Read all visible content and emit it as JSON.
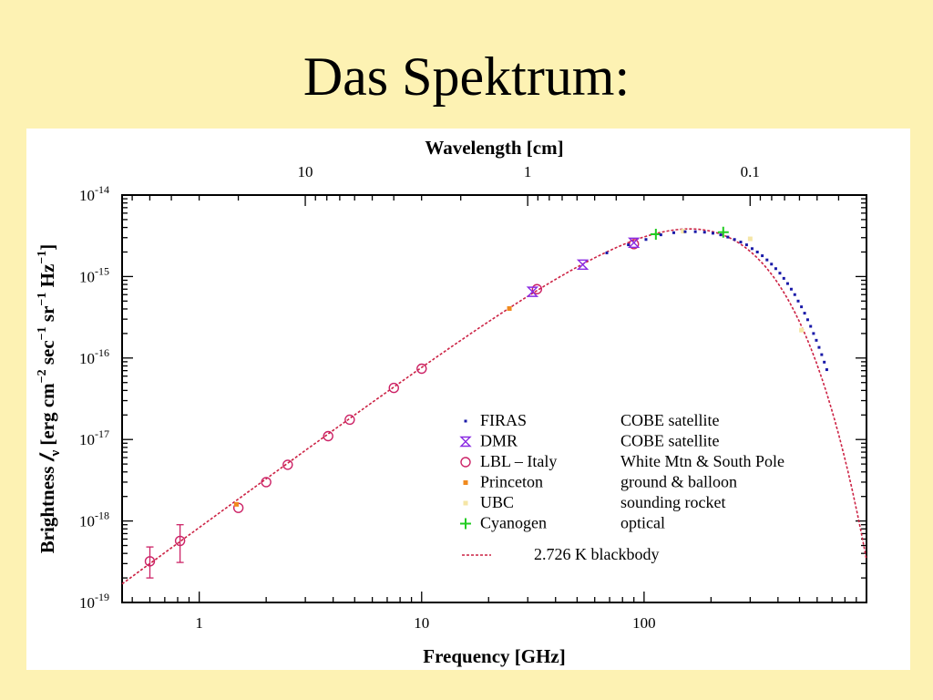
{
  "slide": {
    "title": "Das Spektrum:"
  },
  "colors": {
    "background": "#fdf2b3",
    "firas": "#1a1aa8",
    "dmr": "#8a2be2",
    "lbl": "#cc2266",
    "princeton": "#f08a1e",
    "ubc": "#f5e6a6",
    "cyanogen": "#22cc22",
    "blackbody": "#cc2244"
  },
  "chart_data": {
    "type": "scatter",
    "xscale": "log",
    "yscale": "log",
    "xlabel": "Frequency [GHz]",
    "ylabel_parts": [
      "Brightness ",
      "𝐼",
      "ν",
      " [erg cm",
      "−2",
      " sec",
      "−1",
      " sr",
      "−1",
      " Hz",
      "−1",
      "]"
    ],
    "top_axis_label": "Wavelength [cm]",
    "xlim": [
      0.45,
      1000
    ],
    "ylim": [
      1e-19,
      1e-14
    ],
    "x_ticks": [
      {
        "v": 1,
        "label": "1"
      },
      {
        "v": 10,
        "label": "10"
      },
      {
        "v": 100,
        "label": "100"
      }
    ],
    "y_ticks": [
      {
        "v": 1e-19,
        "base": "10",
        "exp": "-19"
      },
      {
        "v": 1e-18,
        "base": "10",
        "exp": "-18"
      },
      {
        "v": 1e-17,
        "base": "10",
        "exp": "-17"
      },
      {
        "v": 1e-16,
        "base": "10",
        "exp": "-16"
      },
      {
        "v": 1e-15,
        "base": "10",
        "exp": "-15"
      },
      {
        "v": 1e-14,
        "base": "10",
        "exp": "-14"
      }
    ],
    "top_ticks": [
      {
        "cm": 10,
        "label": "10"
      },
      {
        "cm": 1,
        "label": "1"
      },
      {
        "cm": 0.1,
        "label": "0.1"
      }
    ],
    "grid": false,
    "legend": {
      "position": "lower-right",
      "entries": [
        {
          "key": "firas",
          "name": "FIRAS",
          "desc": "COBE satellite"
        },
        {
          "key": "dmr",
          "name": "DMR",
          "desc": "COBE satellite"
        },
        {
          "key": "lbl",
          "name": "LBL – Italy",
          "desc": "White Mtn & South Pole"
        },
        {
          "key": "princeton",
          "name": "Princeton",
          "desc": "ground & balloon"
        },
        {
          "key": "ubc",
          "name": "UBC",
          "desc": "sounding rocket"
        },
        {
          "key": "cyanogen",
          "name": "Cyanogen",
          "desc": "optical"
        }
      ],
      "line_entry": {
        "key": "blackbody",
        "desc": "2.726 K blackbody"
      }
    },
    "model": {
      "name": "2.726 K blackbody",
      "temperature_K": 2.726
    },
    "series": [
      {
        "key": "lbl",
        "marker": "circle",
        "points": [
          {
            "x": 0.6,
            "y": 3.2e-19,
            "err": [
              2e-19,
              4.8e-19
            ]
          },
          {
            "x": 0.82,
            "y": 5.7e-19,
            "err": [
              3.1e-19,
              9e-19
            ]
          },
          {
            "x": 1.5,
            "y": 1.45e-18
          },
          {
            "x": 2.0,
            "y": 3e-18
          },
          {
            "x": 2.5,
            "y": 4.9e-18
          },
          {
            "x": 3.8,
            "y": 1.1e-17
          },
          {
            "x": 4.75,
            "y": 1.75e-17
          },
          {
            "x": 7.5,
            "y": 4.3e-17
          },
          {
            "x": 10.0,
            "y": 7.4e-17
          },
          {
            "x": 33.0,
            "y": 7e-16
          },
          {
            "x": 90.0,
            "y": 2.5e-15
          }
        ]
      },
      {
        "key": "princeton",
        "marker": "square",
        "points": [
          {
            "x": 1.47,
            "y": 1.6e-18
          },
          {
            "x": 24.8,
            "y": 4.05e-16
          }
        ]
      },
      {
        "key": "dmr",
        "marker": "hourglass",
        "points": [
          {
            "x": 31.5,
            "y": 6.5e-16
          },
          {
            "x": 53,
            "y": 1.4e-15
          },
          {
            "x": 90,
            "y": 2.6e-15
          }
        ]
      },
      {
        "key": "cyanogen",
        "marker": "plus",
        "points": [
          {
            "x": 113,
            "y": 3.3e-15
          },
          {
            "x": 227,
            "y": 3.5e-15
          }
        ]
      },
      {
        "key": "ubc",
        "marker": "square",
        "points": [
          {
            "x": 150,
            "y": 3.6e-15
          },
          {
            "x": 300,
            "y": 2.9e-15
          },
          {
            "x": 510,
            "y": 2.2e-16
          }
        ]
      },
      {
        "key": "firas",
        "marker": "square",
        "points": [
          {
            "x": 68,
            "y": 1.95e-15
          },
          {
            "x": 85,
            "y": 2.45e-15
          },
          {
            "x": 102,
            "y": 2.85e-15
          },
          {
            "x": 119,
            "y": 3.25e-15
          },
          {
            "x": 136,
            "y": 3.45e-15
          },
          {
            "x": 153,
            "y": 3.55e-15
          },
          {
            "x": 170,
            "y": 3.55e-15
          },
          {
            "x": 187,
            "y": 3.5e-15
          },
          {
            "x": 204,
            "y": 3.4e-15
          },
          {
            "x": 221,
            "y": 3.25e-15
          },
          {
            "x": 238,
            "y": 3.05e-15
          },
          {
            "x": 255,
            "y": 2.85e-15
          },
          {
            "x": 272,
            "y": 2.65e-15
          },
          {
            "x": 289,
            "y": 2.45e-15
          },
          {
            "x": 306,
            "y": 2.2e-15
          },
          {
            "x": 323,
            "y": 2e-15
          },
          {
            "x": 340,
            "y": 1.8e-15
          },
          {
            "x": 357,
            "y": 1.6e-15
          },
          {
            "x": 374,
            "y": 1.42e-15
          },
          {
            "x": 391,
            "y": 1.25e-15
          },
          {
            "x": 408,
            "y": 1.1e-15
          },
          {
            "x": 425,
            "y": 9.5e-16
          },
          {
            "x": 442,
            "y": 8.2e-16
          },
          {
            "x": 459,
            "y": 7e-16
          },
          {
            "x": 476,
            "y": 6e-16
          },
          {
            "x": 493,
            "y": 5e-16
          },
          {
            "x": 510,
            "y": 4.25e-16
          },
          {
            "x": 527,
            "y": 3.55e-16
          },
          {
            "x": 544,
            "y": 2.95e-16
          },
          {
            "x": 561,
            "y": 2.45e-16
          },
          {
            "x": 578,
            "y": 2e-16
          },
          {
            "x": 595,
            "y": 1.65e-16
          },
          {
            "x": 612,
            "y": 1.35e-16
          },
          {
            "x": 629,
            "y": 1.1e-16
          },
          {
            "x": 646,
            "y": 8.9e-17
          },
          {
            "x": 663,
            "y": 7.2e-17
          }
        ]
      }
    ]
  }
}
